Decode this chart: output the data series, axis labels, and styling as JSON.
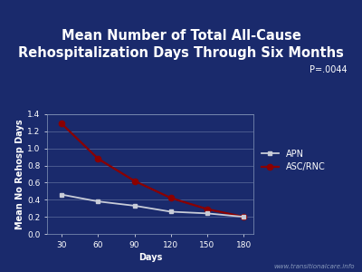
{
  "title_line1": "Mean Number of Total All-Cause",
  "title_line2": "Rehospitalization Days Through Six Months",
  "days": [
    30,
    60,
    90,
    120,
    150,
    180
  ],
  "apn_values": [
    0.46,
    0.38,
    0.33,
    0.26,
    0.24,
    0.2
  ],
  "asc_rnc_values": [
    1.29,
    0.88,
    0.62,
    0.42,
    0.29,
    0.2
  ],
  "xlabel": "Days",
  "ylabel": "Mean No Rehosp Days",
  "ylim": [
    0,
    1.4
  ],
  "yticks": [
    0,
    0.2,
    0.4,
    0.6,
    0.8,
    1.0,
    1.2,
    1.4
  ],
  "xticks": [
    30,
    60,
    90,
    120,
    150,
    180
  ],
  "apn_color": "#c8ccd8",
  "asc_color": "#8b0000",
  "bg_color": "#1a2a6c",
  "axes_bg_color": "#1a2a6c",
  "grid_color": "#8899bb",
  "text_color": "#ffffff",
  "legend_apn": "APN",
  "legend_asc": "ASC/RNC",
  "pvalue_text": "P=.0044",
  "watermark": "www.transitionalcare.info",
  "red_bar_color": "#cc0000",
  "header_sep_color": "#c8ccd8",
  "title_fontsize": 10.5,
  "axis_label_fontsize": 7,
  "tick_fontsize": 6.5,
  "legend_fontsize": 7,
  "pvalue_fontsize": 7
}
